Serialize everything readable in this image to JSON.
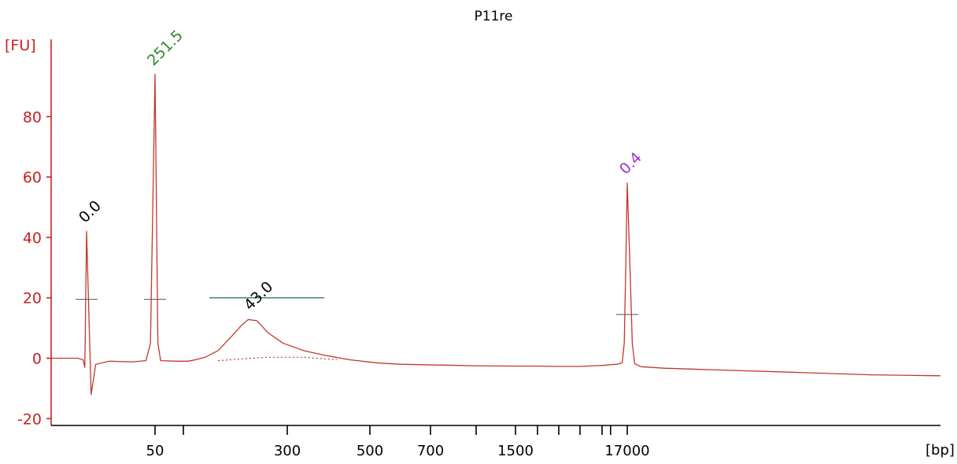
{
  "chart_data": {
    "type": "line",
    "title": "P11re",
    "ylabel": "[FU]",
    "xlabel": "[bp]",
    "ylim": [
      -22,
      108
    ],
    "yticks": [
      -20,
      0,
      20,
      40,
      60,
      80
    ],
    "xticks": [
      {
        "pos": 50,
        "label": "50"
      },
      {
        "pos": 60,
        "label": ""
      },
      {
        "pos": 300,
        "label": "300"
      },
      {
        "pos": 500,
        "label": "500"
      },
      {
        "pos": 700,
        "label": "700"
      },
      {
        "pos": 1000,
        "label": ""
      },
      {
        "pos": 1500,
        "label": "1500"
      },
      {
        "pos": 2000,
        "label": ""
      },
      {
        "pos": 3000,
        "label": ""
      },
      {
        "pos": 4000,
        "label": ""
      },
      {
        "pos": 7000,
        "label": ""
      },
      {
        "pos": 10380,
        "label": ""
      },
      {
        "pos": 17000,
        "label": "17000"
      }
    ],
    "peak_labels": [
      {
        "text": "0.0",
        "color": "#000000",
        "x": 35,
        "y": 42
      },
      {
        "text": "251.5",
        "color": "#2e8b2e",
        "x": 50,
        "y": 94
      },
      {
        "text": "43.0",
        "color": "#000000",
        "x": 218,
        "y": 13
      },
      {
        "text": "0.4",
        "color": "#9b30d9",
        "x": 17000,
        "y": 58
      }
    ],
    "series": [
      {
        "color": "#c0392b",
        "points": [
          [
            15,
            0
          ],
          [
            30,
            0
          ],
          [
            33,
            -0.5
          ],
          [
            34,
            -3
          ],
          [
            35,
            42
          ],
          [
            36,
            -12
          ],
          [
            37,
            -2
          ],
          [
            40,
            -1
          ],
          [
            45,
            -1.2
          ],
          [
            48,
            -0.8
          ],
          [
            49,
            5
          ],
          [
            50,
            94
          ],
          [
            51,
            5
          ],
          [
            52,
            -0.8
          ],
          [
            58,
            -1
          ],
          [
            70,
            -1
          ],
          [
            85,
            -0.6
          ],
          [
            110,
            0.3
          ],
          [
            140,
            2.5
          ],
          [
            170,
            7
          ],
          [
            195,
            11
          ],
          [
            210,
            12.8
          ],
          [
            230,
            12.4
          ],
          [
            255,
            8.5
          ],
          [
            290,
            5
          ],
          [
            340,
            2.5
          ],
          [
            390,
            1
          ],
          [
            450,
            -0.5
          ],
          [
            520,
            -1.5
          ],
          [
            600,
            -2
          ],
          [
            800,
            -2.3
          ],
          [
            1000,
            -2.5
          ],
          [
            1500,
            -2.6
          ],
          [
            2000,
            -2.6
          ],
          [
            3000,
            -2.7
          ],
          [
            4000,
            -2.7
          ],
          [
            7000,
            -2.4
          ],
          [
            10000,
            -2.2
          ],
          [
            13000,
            -2
          ],
          [
            15000,
            -1.5
          ],
          [
            15800,
            5
          ],
          [
            16400,
            30
          ],
          [
            17000,
            58
          ],
          [
            17600,
            30
          ],
          [
            18100,
            5
          ],
          [
            18600,
            -1.8
          ],
          [
            20000,
            -2.8
          ],
          [
            25000,
            -3.3
          ],
          [
            35000,
            -3.8
          ],
          [
            50000,
            -4.5
          ],
          [
            70000,
            -5.5
          ],
          [
            85000,
            -5.8
          ]
        ]
      }
    ],
    "baseline": {
      "points": [
        [
          140,
          -0.8
        ],
        [
          250,
          0.3
        ],
        [
          340,
          0.3
        ],
        [
          420,
          -0.5
        ]
      ],
      "color": "#c0392b"
    },
    "peak_markers": [
      {
        "x": 35,
        "y": 19.5
      },
      {
        "x": 50,
        "y": 19.5
      },
      {
        "x": 17000,
        "y": 14.5
      }
    ],
    "region_bar": {
      "x_start": 120,
      "x_end": 390,
      "y": 20,
      "color": "#2e7d6b"
    }
  }
}
